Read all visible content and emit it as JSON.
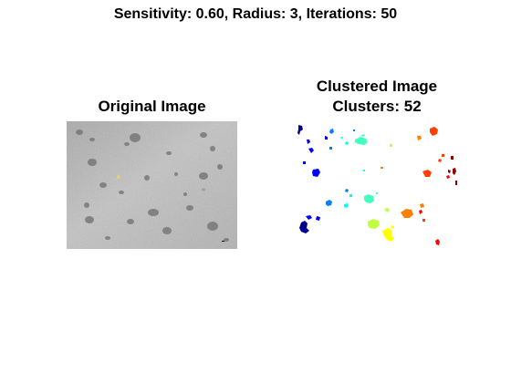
{
  "figure": {
    "suptitle": "Sensitivity: 0.60, Radius: 3, Iterations: 50"
  },
  "original_axes": {
    "title": "Original Image"
  },
  "clustered_axes": {
    "title_line1": "Clustered Image",
    "title_line2": "Clusters: 52"
  },
  "colors": {
    "background": "#ffffff",
    "concrete_base": "#b9b9b9",
    "dark_blue": "#00008f",
    "blue": "#0000ff",
    "sky_blue": "#0080ff",
    "cyan": "#00ffff",
    "green_cyan": "#40ffbf",
    "yellow_green": "#bfff40",
    "yellow": "#ffff00",
    "orange": "#ff8000",
    "red_orange": "#ff4000",
    "red": "#ff0000",
    "dark_red": "#8f0000"
  }
}
